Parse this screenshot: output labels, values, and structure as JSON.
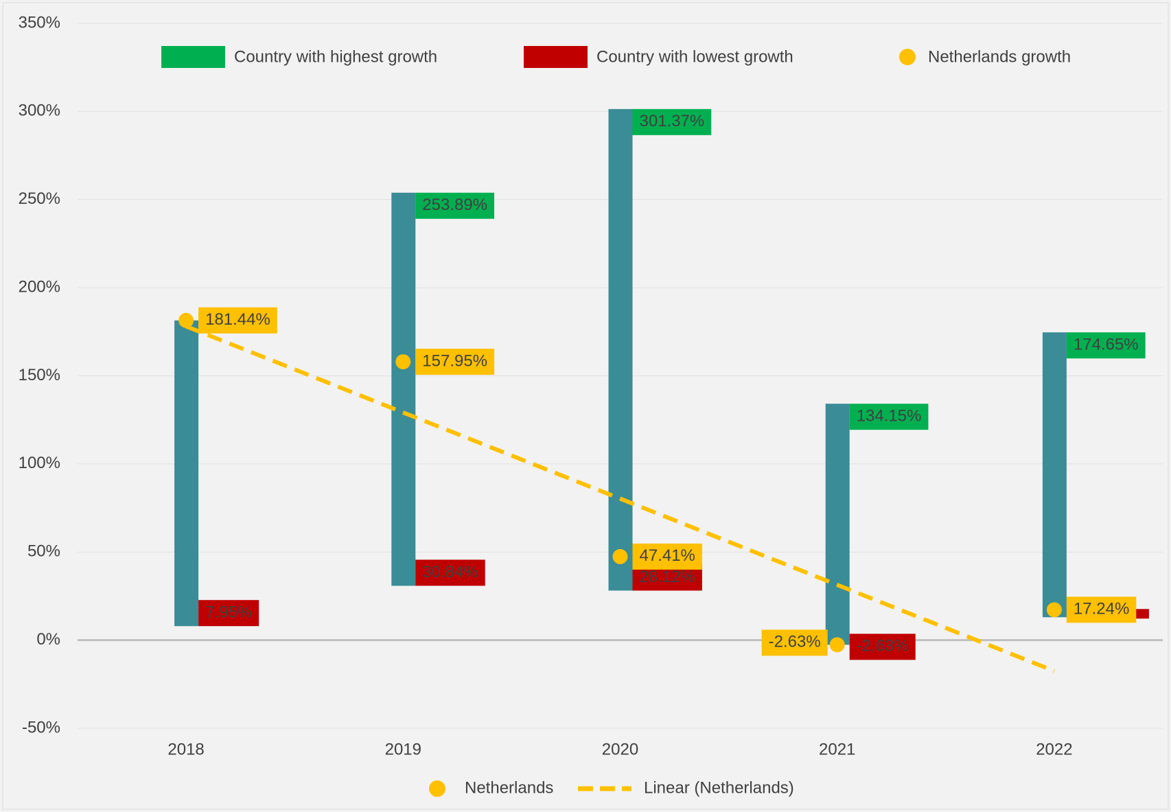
{
  "chart_data": {
    "type": "range_bar",
    "categories": [
      "2018",
      "2019",
      "2020",
      "2021",
      "2022"
    ],
    "bar_color": "#3a8c96",
    "series": [
      {
        "name": "Country with highest growth",
        "color": "#00b050",
        "values": [
          181.44,
          253.89,
          301.37,
          134.15,
          174.65
        ],
        "value_labels": [
          null,
          "253.89%",
          "301.37%",
          "134.15%",
          "174.65%"
        ]
      },
      {
        "name": "Country with lowest growth",
        "color": "#c00000",
        "values": [
          7.95,
          30.84,
          28.12,
          -2.63,
          13
        ],
        "value_labels": [
          "7.95%",
          "30.84%",
          "28.12%",
          "-2.63%",
          null
        ]
      },
      {
        "name": "Netherlands growth",
        "color": "#ffc000",
        "values": [
          181.44,
          157.95,
          47.41,
          -2.63,
          17.24
        ],
        "value_labels": [
          "181.44%",
          "157.95%",
          "47.41%",
          "-2.63%",
          "17.24%"
        ]
      }
    ],
    "point_legend": "Netherlands",
    "trendline": {
      "name": "Linear (Netherlands)",
      "color": "#ffc000"
    },
    "ylim": [
      -50,
      350
    ],
    "yticks": [
      {
        "value": -50,
        "label": "-50%"
      },
      {
        "value": 0,
        "label": "0%"
      },
      {
        "value": 50,
        "label": "50%"
      },
      {
        "value": 100,
        "label": "100%"
      },
      {
        "value": 150,
        "label": "150%"
      },
      {
        "value": 200,
        "label": "200%"
      },
      {
        "value": 250,
        "label": "250%"
      },
      {
        "value": 300,
        "label": "300%"
      },
      {
        "value": 350,
        "label": "350%"
      }
    ],
    "grid": true
  }
}
